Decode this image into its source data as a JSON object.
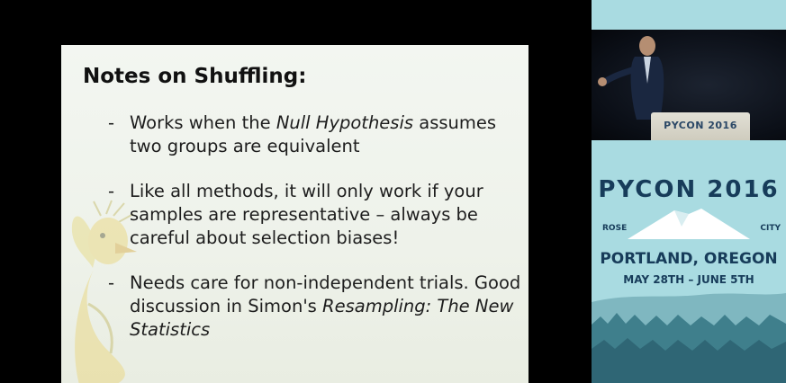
{
  "slide": {
    "title": "Notes on Shuffling:",
    "bullets": [
      {
        "dash": "-",
        "segments": [
          {
            "text": "Works when the "
          },
          {
            "text": "Null Hypothesis",
            "italic": true
          },
          {
            "text": " assumes two groups are equivalent"
          }
        ]
      },
      {
        "dash": "-",
        "segments": [
          {
            "text": "Like all methods, it will only work if your samples are representative – always be careful about selection biases!"
          }
        ]
      },
      {
        "dash": "-",
        "segments": [
          {
            "text": "Needs care for non-independent trials. Good discussion in Simon's "
          },
          {
            "text": "Resampling: The New Statistics",
            "italic": true
          }
        ]
      }
    ]
  },
  "camera": {
    "podium_label": "PYCON 2016"
  },
  "poster": {
    "title": "PYCON 2016",
    "left_label": "ROSE",
    "right_label": "CITY",
    "location": "PORTLAND, OREGON",
    "dates": "MAY 28TH – JUNE 5TH"
  },
  "colors": {
    "slide_bg": "#eef2ea",
    "poster_bg": "#a9dbe1",
    "poster_text": "#173c5a"
  }
}
